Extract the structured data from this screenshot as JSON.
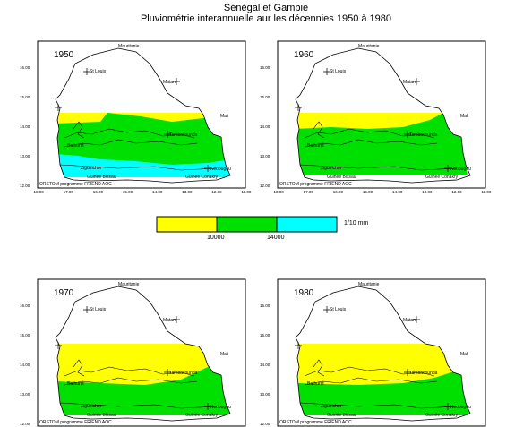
{
  "title": "Sénégal et Gambie",
  "subtitle": "Pluviométrie interannuelle aur les décennies 1950 à 1980",
  "colors": {
    "low": "#ffff00",
    "mid": "#00e000",
    "high": "#00ffff",
    "frame": "#000000"
  },
  "legend": {
    "classes": [
      {
        "color": "#ffff00"
      },
      {
        "color": "#00e000"
      },
      {
        "color": "#00ffff"
      }
    ],
    "ticks": [
      "10000",
      "14000"
    ],
    "unit": "1/10 mm"
  },
  "labels": {
    "mauritanie": "Mauritanie",
    "st_louis": "St Louis",
    "matam": "Matam",
    "mali": "Mali",
    "bathurst": "Bathurst",
    "tambacounda": "Tambacounda",
    "ziguinchor": "Ziguinchor",
    "kedougou": "Kedougou",
    "guinee_bissau": "Guinée Bissau",
    "guinee_conakry": "Guinée Conakry",
    "credit": "ORSTOM programme FRIEND AOC"
  },
  "x_ticks": [
    "-18.00",
    "-17.00",
    "-16.00",
    "-15.00",
    "-14.00",
    "-13.00",
    "-12.00",
    "-11.00"
  ],
  "y_ticks": [
    "16.00",
    "15.00",
    "14.00",
    "13.00",
    "12.00"
  ],
  "panels": [
    {
      "year": "1950",
      "zones": "1950"
    },
    {
      "year": "1960",
      "zones": "1960"
    },
    {
      "year": "1970",
      "zones": "1970"
    },
    {
      "year": "1980",
      "zones": "1980"
    }
  ]
}
